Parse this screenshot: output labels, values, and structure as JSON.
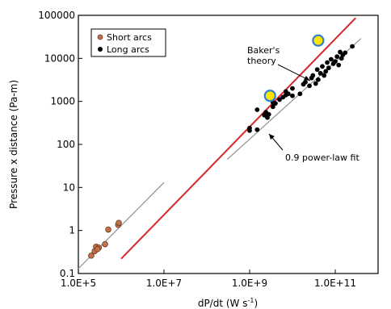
{
  "chart_data": {
    "type": "scatter",
    "xlabel": "dP/dt (W s",
    "xlabel_sup": "-1",
    "xlabel_close": ")",
    "ylabel": "Pressure x distance (Pa-m)",
    "x_scale": "log",
    "y_scale": "log",
    "xlim": [
      100000,
      1000000000000
    ],
    "ylim": [
      0.1,
      100000
    ],
    "x_tick_values": [
      100000,
      10000000,
      1000000000,
      100000000000
    ],
    "x_tick_labels": [
      "1.0E+5",
      "1.0E+7",
      "1.0E+9",
      "1.0E+11"
    ],
    "y_tick_values": [
      0.1,
      1,
      10,
      100,
      1000,
      10000,
      100000
    ],
    "y_tick_labels": [
      "0.1",
      "1",
      "10",
      "100",
      "1000",
      "10000",
      "100000"
    ],
    "grid": false,
    "legend_position": "top-left",
    "legend": [
      "Short arcs",
      "Long arcs"
    ],
    "colors": {
      "short": "#c0714a",
      "long": "#000000",
      "baker": "#d62728",
      "fit": "#999999",
      "highlight_fill": "#ffe600",
      "highlight_ring": "#2f7fd0"
    },
    "series": [
      {
        "name": "Short arcs",
        "points": [
          [
            200000,
            0.26
          ],
          [
            240000,
            0.33
          ],
          [
            260000,
            0.42
          ],
          [
            300000,
            0.4
          ],
          [
            280000,
            0.37
          ],
          [
            420000,
            0.48
          ],
          [
            500000,
            1.05
          ],
          [
            850000,
            1.35
          ],
          [
            880000,
            1.5
          ]
        ]
      },
      {
        "name": "Long arcs",
        "points": [
          [
            1000000000,
            210
          ],
          [
            1000000000,
            240
          ],
          [
            1500000000,
            220
          ],
          [
            1500000000,
            640
          ],
          [
            2200000000,
            480
          ],
          [
            2400000000,
            560
          ],
          [
            2600000000,
            420
          ],
          [
            2800000000,
            500
          ],
          [
            3500000000,
            750
          ],
          [
            3500000000,
            950
          ],
          [
            4000000000,
            900
          ],
          [
            5000000000,
            1100
          ],
          [
            6000000000,
            1250
          ],
          [
            7000000000,
            1400
          ],
          [
            7000000000,
            1700
          ],
          [
            8000000000,
            1500
          ],
          [
            10000000000,
            1350
          ],
          [
            10000000000,
            2000
          ],
          [
            15000000000,
            1500
          ],
          [
            18000000000,
            2500
          ],
          [
            20000000000,
            2800
          ],
          [
            25000000000,
            2300
          ],
          [
            28000000000,
            3500
          ],
          [
            30000000000,
            4000
          ],
          [
            35000000000,
            2600
          ],
          [
            38000000000,
            5500
          ],
          [
            40000000000,
            3200
          ],
          [
            45000000000,
            4500
          ],
          [
            50000000000,
            6500
          ],
          [
            55000000000,
            4000
          ],
          [
            60000000000,
            5000
          ],
          [
            65000000000,
            8000
          ],
          [
            70000000000,
            6000
          ],
          [
            80000000000,
            9500
          ],
          [
            90000000000,
            7500
          ],
          [
            100000000000,
            8500
          ],
          [
            110000000000,
            11000
          ],
          [
            120000000000,
            7000
          ],
          [
            130000000000,
            14000
          ],
          [
            140000000000,
            10000
          ],
          [
            150000000000,
            12000
          ],
          [
            170000000000,
            13500
          ],
          [
            250000000000,
            19000
          ]
        ]
      }
    ],
    "highlighted_points": [
      [
        3000000000,
        1350
      ],
      [
        40000000000,
        26000
      ]
    ],
    "lines": [
      {
        "label": "Baker's theory",
        "from": [
          1000000,
          0.22
        ],
        "to": [
          300000000000,
          87000
        ]
      },
      {
        "label": "0.9 power-law fit",
        "from": [
          300000000,
          45
        ],
        "to": [
          400000000000,
          29000
        ]
      },
      {
        "label": "",
        "from": [
          100000,
          0.13
        ],
        "to": [
          10000000,
          13
        ]
      }
    ],
    "annotations": {
      "baker_line1": "Baker's",
      "baker_line2": "theory",
      "fit": "0.9 power-law fit"
    }
  }
}
